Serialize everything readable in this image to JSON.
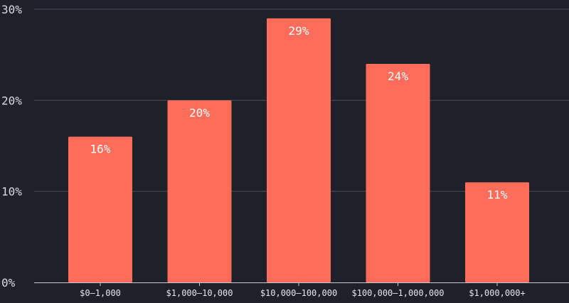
{
  "chart_data": {
    "type": "bar",
    "categories": [
      "$0–1,000",
      "$1,000–10,000",
      "$10,000–100,000",
      "$100,000–1,000,000",
      "$1,000,000+"
    ],
    "values": [
      16,
      20,
      29,
      24,
      11
    ],
    "data_labels": [
      "16%",
      "20%",
      "29%",
      "24%",
      "11%"
    ],
    "y_ticks": [
      0,
      10,
      20,
      30
    ],
    "y_tick_labels": [
      "0%",
      "10%",
      "20%",
      "30%"
    ],
    "ylim": [
      0,
      30
    ],
    "grid": true,
    "title": "",
    "xlabel": "",
    "ylabel": "",
    "colors": {
      "background": "#1f212a",
      "bar": "#ff6d5a",
      "grid": "#4a4d58",
      "axis": "#c8cad2",
      "text": "#d9dbe2",
      "data_label": "#ffffff"
    }
  }
}
